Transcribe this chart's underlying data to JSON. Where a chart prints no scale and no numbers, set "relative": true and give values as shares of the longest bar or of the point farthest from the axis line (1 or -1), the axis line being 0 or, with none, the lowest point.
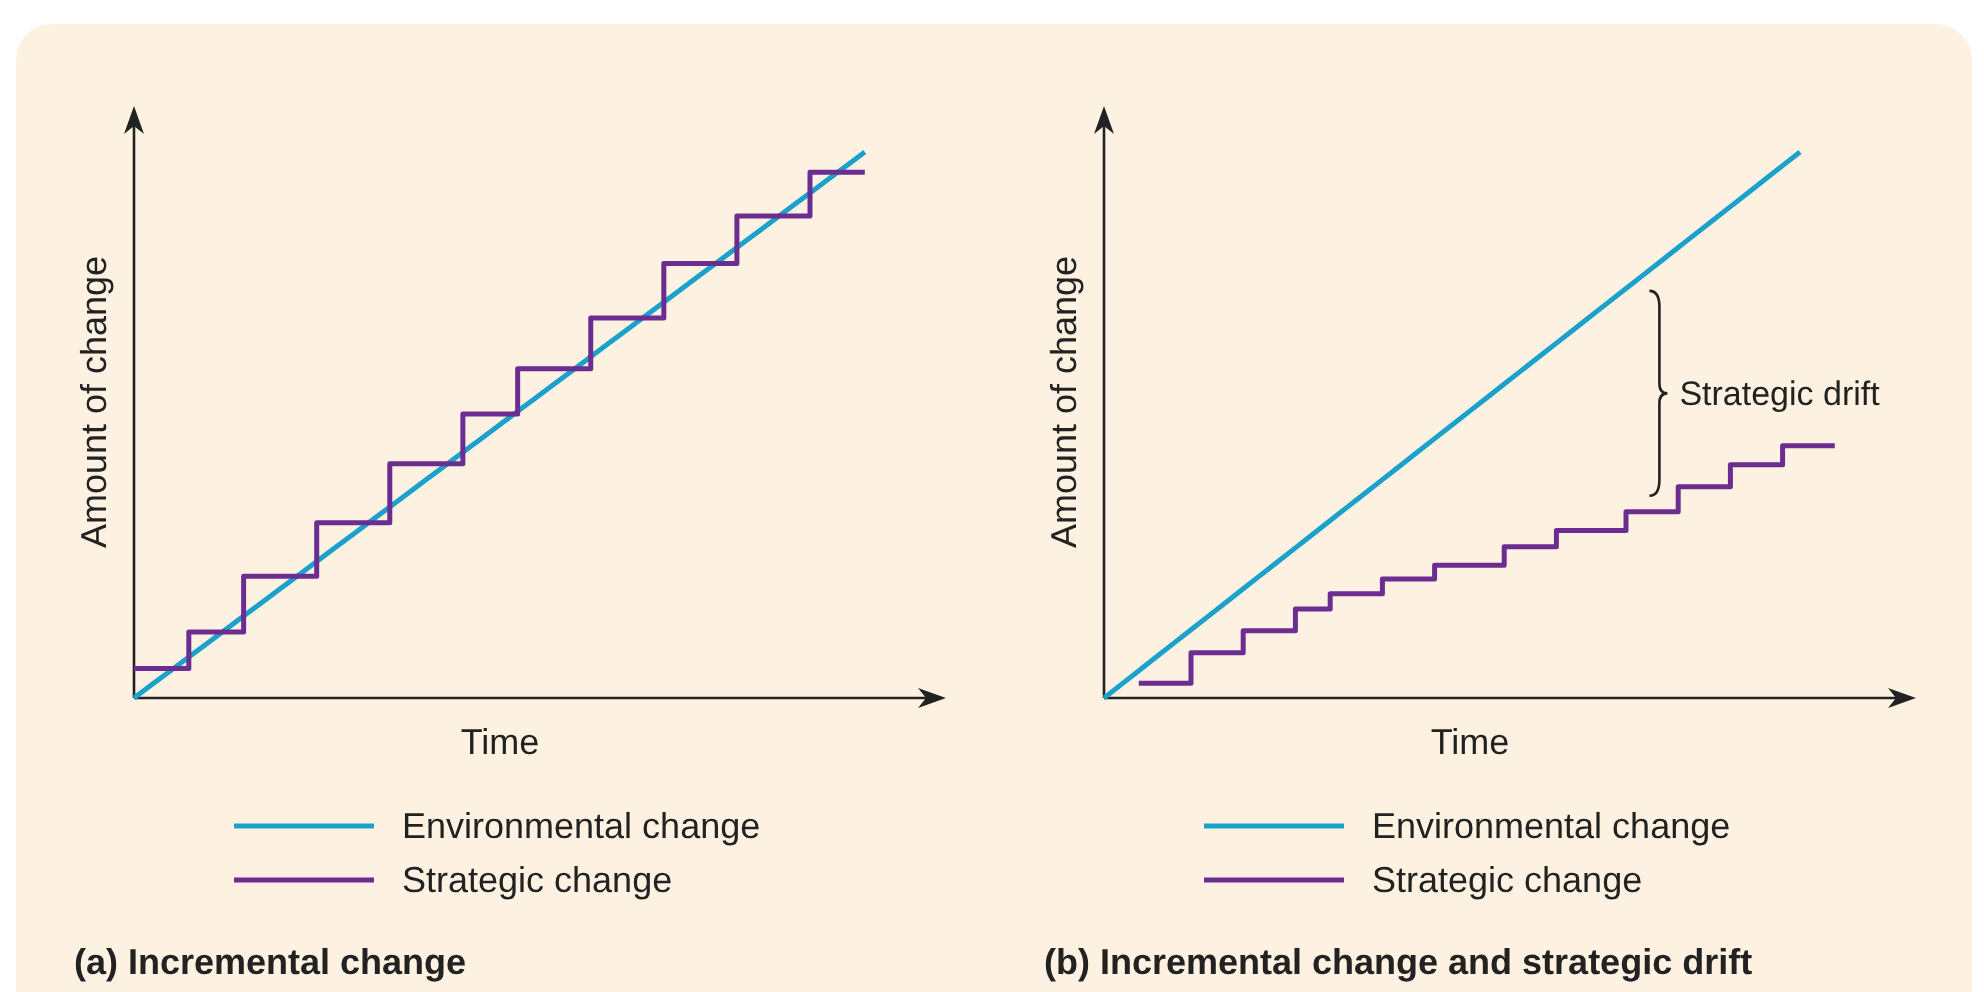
{
  "chart_data": [
    {
      "type": "line",
      "title": "(a) Incremental change",
      "xlabel": "Time",
      "ylabel": "Amount of change",
      "relative": true,
      "legend": "bottom",
      "categories": [
        null,
        null,
        null,
        null,
        null,
        null,
        null,
        null,
        null,
        null,
        null,
        null,
        null,
        null,
        null,
        null,
        null,
        null,
        null,
        null,
        null,
        null,
        null,
        null,
        null,
        null,
        null,
        null,
        null,
        null,
        null,
        null,
        null,
        null,
        null,
        null,
        null,
        null,
        null,
        null,
        null
      ],
      "series": [
        {
          "name": "Environmental change",
          "color": "#1ba1cc",
          "values": [
            0,
            0.025,
            0.05,
            0.075,
            0.1,
            0.125,
            0.15,
            0.175,
            0.2,
            0.225,
            0.25,
            0.275,
            0.3,
            0.325,
            0.35,
            0.375,
            0.4,
            0.425,
            0.45,
            0.475,
            0.5,
            0.525,
            0.55,
            0.575,
            0.6,
            0.625,
            0.65,
            0.675,
            0.7,
            0.725,
            0.75,
            0.775,
            0.8,
            0.825,
            0.85,
            0.875,
            0.9,
            0.925,
            0.95,
            0.975,
            1
          ]
        },
        {
          "name": "Strategic change",
          "type": "step",
          "color": "#6b2d90",
          "values": [
            0.054,
            0.054,
            0.054,
            0.121,
            0.121,
            0.121,
            0.223,
            0.223,
            0.223,
            0.223,
            0.321,
            0.321,
            0.321,
            0.321,
            0.429,
            0.429,
            0.429,
            0.429,
            0.52,
            0.52,
            0.52,
            0.603,
            0.603,
            0.603,
            0.603,
            0.696,
            0.696,
            0.696,
            0.696,
            0.796,
            0.796,
            0.796,
            0.796,
            0.883,
            0.883,
            0.883,
            0.883,
            0.963,
            0.963,
            0.963,
            0.963
          ]
        }
      ]
    },
    {
      "type": "line",
      "title": "(b) Incremental change and strategic drift",
      "xlabel": "Time",
      "ylabel": "Amount of change",
      "relative": true,
      "legend": "bottom",
      "annotations": [
        "Strategic drift"
      ],
      "categories": [
        null,
        null,
        null,
        null,
        null,
        null,
        null,
        null,
        null,
        null,
        null,
        null,
        null,
        null,
        null,
        null,
        null,
        null,
        null,
        null,
        null,
        null,
        null,
        null,
        null,
        null,
        null,
        null,
        null,
        null,
        null,
        null,
        null,
        null,
        null,
        null,
        null,
        null,
        null,
        null,
        null,
        null,
        null
      ],
      "series": [
        {
          "name": "Environmental change",
          "color": "#1ba1cc",
          "values": [
            0,
            0.025,
            0.05,
            0.075,
            0.1,
            0.125,
            0.15,
            0.175,
            0.2,
            0.225,
            0.25,
            0.275,
            0.3,
            0.325,
            0.35,
            0.375,
            0.4,
            0.425,
            0.45,
            0.475,
            0.5,
            0.525,
            0.55,
            0.575,
            0.6,
            0.625,
            0.65,
            0.675,
            0.7,
            0.725,
            0.75,
            0.775,
            0.8,
            0.825,
            0.85,
            0.875,
            0.9,
            0.925,
            0.95,
            0.975,
            1,
            null,
            null
          ]
        },
        {
          "name": "Strategic change",
          "type": "step",
          "color": "#6b2d90",
          "values": [
            null,
            null,
            0.027,
            0.027,
            0.027,
            0.083,
            0.083,
            0.083,
            0.123,
            0.123,
            0.123,
            0.163,
            0.163,
            0.191,
            0.191,
            0.191,
            0.218,
            0.218,
            0.218,
            0.243,
            0.243,
            0.243,
            0.243,
            0.277,
            0.277,
            0.277,
            0.307,
            0.307,
            0.307,
            0.307,
            0.341,
            0.341,
            0.341,
            0.387,
            0.387,
            0.387,
            0.427,
            0.427,
            0.427,
            0.462,
            0.462,
            0.462,
            0.462
          ]
        }
      ]
    }
  ]
}
